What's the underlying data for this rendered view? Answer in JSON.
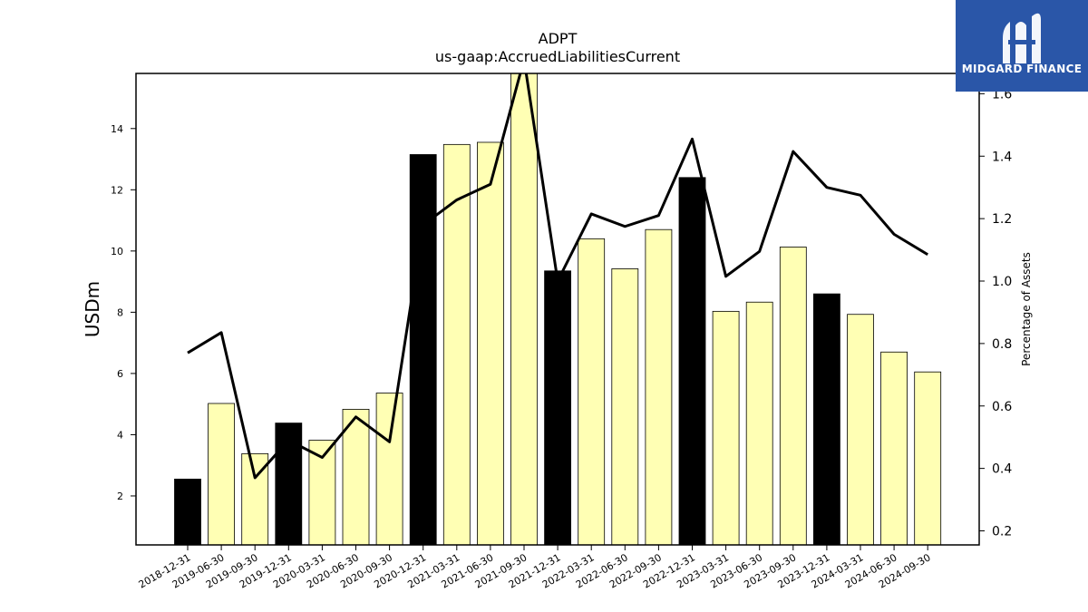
{
  "logo": {
    "text": "MIDGARD FINANCE",
    "bg_color": "#2a56a8"
  },
  "chart_data": {
    "type": "bar",
    "title": "ADPT",
    "subtitle": "us-gaap:AccruedLiabilitiesCurrent",
    "ylabel": "USDm",
    "ylabel_right": "Percentage of Assets",
    "categories": [
      "2018-12-31",
      "2019-06-30",
      "2019-09-30",
      "2019-12-31",
      "2020-03-31",
      "2020-06-30",
      "2020-09-30",
      "2020-12-31",
      "2021-03-31",
      "2021-06-30",
      "2021-09-30",
      "2021-12-31",
      "2022-03-31",
      "2022-06-30",
      "2022-09-30",
      "2022-12-31",
      "2023-03-31",
      "2023-06-30",
      "2023-09-30",
      "2023-12-31",
      "2024-03-31",
      "2024-06-30",
      "2024-09-30"
    ],
    "series": [
      {
        "values": [
          2.55,
          5.02,
          3.38,
          4.38,
          3.82,
          4.83,
          5.36,
          13.15,
          13.48,
          13.55,
          15.8,
          9.35,
          10.4,
          9.42,
          10.7,
          12.4,
          8.03,
          8.33,
          10.13,
          8.6,
          7.93,
          6.7,
          6.05
        ],
        "annual": [
          true,
          false,
          false,
          true,
          false,
          false,
          false,
          true,
          false,
          false,
          false,
          true,
          false,
          false,
          false,
          true,
          false,
          false,
          false,
          true,
          false,
          false,
          false
        ]
      },
      {
        "axis": "right",
        "values": [
          0.77,
          0.835,
          0.37,
          0.49,
          0.435,
          0.565,
          0.485,
          1.18,
          1.26,
          1.31,
          1.71,
          1.0,
          1.215,
          1.175,
          1.21,
          1.455,
          1.015,
          1.095,
          1.415,
          1.3,
          1.275,
          1.15,
          1.085
        ]
      }
    ],
    "ylim": [
      0.4,
      15.8
    ],
    "ylim_right": [
      0.155,
      1.665
    ],
    "yticks": [
      2,
      4,
      6,
      8,
      10,
      12,
      14
    ],
    "yticks_right": [
      0.2,
      0.4,
      0.6,
      0.8,
      1.0,
      1.2,
      1.4,
      1.6
    ],
    "colors": {
      "annual_bar": "#000000",
      "quarter_bar": "#ffffb4",
      "bar_edge": "#000000",
      "line": "#000000"
    }
  }
}
